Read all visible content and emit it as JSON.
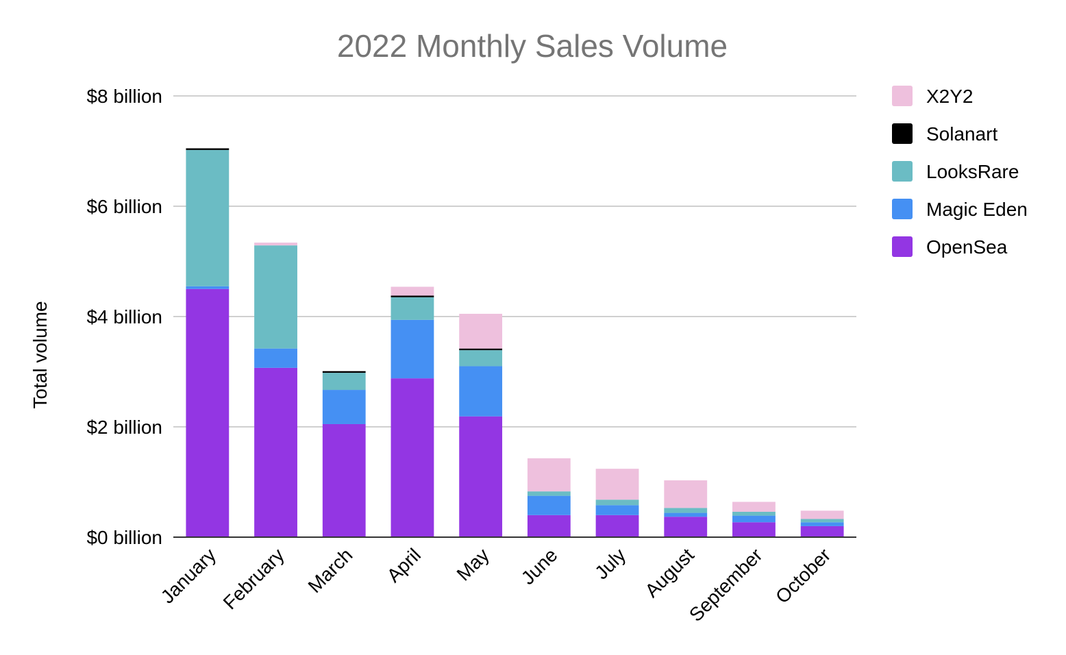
{
  "chart_data": {
    "type": "bar",
    "stacked": true,
    "title": "2022 Monthly Sales Volume",
    "xlabel": "",
    "ylabel": "Total volume",
    "ylim": [
      0,
      8
    ],
    "yticks": [
      0,
      2,
      4,
      6,
      8
    ],
    "ytick_labels": [
      "$0 billion",
      "$2 billion",
      "$4 billion",
      "$6 billion",
      "$8 billion"
    ],
    "categories": [
      "January",
      "February",
      "March",
      "April",
      "May",
      "June",
      "July",
      "August",
      "September",
      "October"
    ],
    "series": [
      {
        "name": "OpenSea",
        "color": "#9336e3",
        "values": [
          4.5,
          3.07,
          2.05,
          2.88,
          2.19,
          0.4,
          0.4,
          0.37,
          0.27,
          0.2
        ]
      },
      {
        "name": "Magic Eden",
        "color": "#4590f3",
        "values": [
          0.05,
          0.35,
          0.62,
          1.06,
          0.91,
          0.35,
          0.18,
          0.07,
          0.12,
          0.07
        ]
      },
      {
        "name": "LooksRare",
        "color": "#6bbcc4",
        "values": [
          2.47,
          1.87,
          0.31,
          0.41,
          0.29,
          0.08,
          0.1,
          0.09,
          0.07,
          0.06
        ]
      },
      {
        "name": "Solanart",
        "color": "#000000",
        "values": [
          0.03,
          0.0,
          0.03,
          0.03,
          0.03,
          0.0,
          0.0,
          0.0,
          0.0,
          0.0
        ]
      },
      {
        "name": "X2Y2",
        "color": "#eec0dd",
        "values": [
          0.0,
          0.05,
          0.0,
          0.16,
          0.63,
          0.6,
          0.56,
          0.5,
          0.18,
          0.15
        ]
      }
    ],
    "legend_order": [
      "X2Y2",
      "Solanart",
      "LooksRare",
      "Magic Eden",
      "OpenSea"
    ],
    "legend_position": "right",
    "grid": true
  }
}
